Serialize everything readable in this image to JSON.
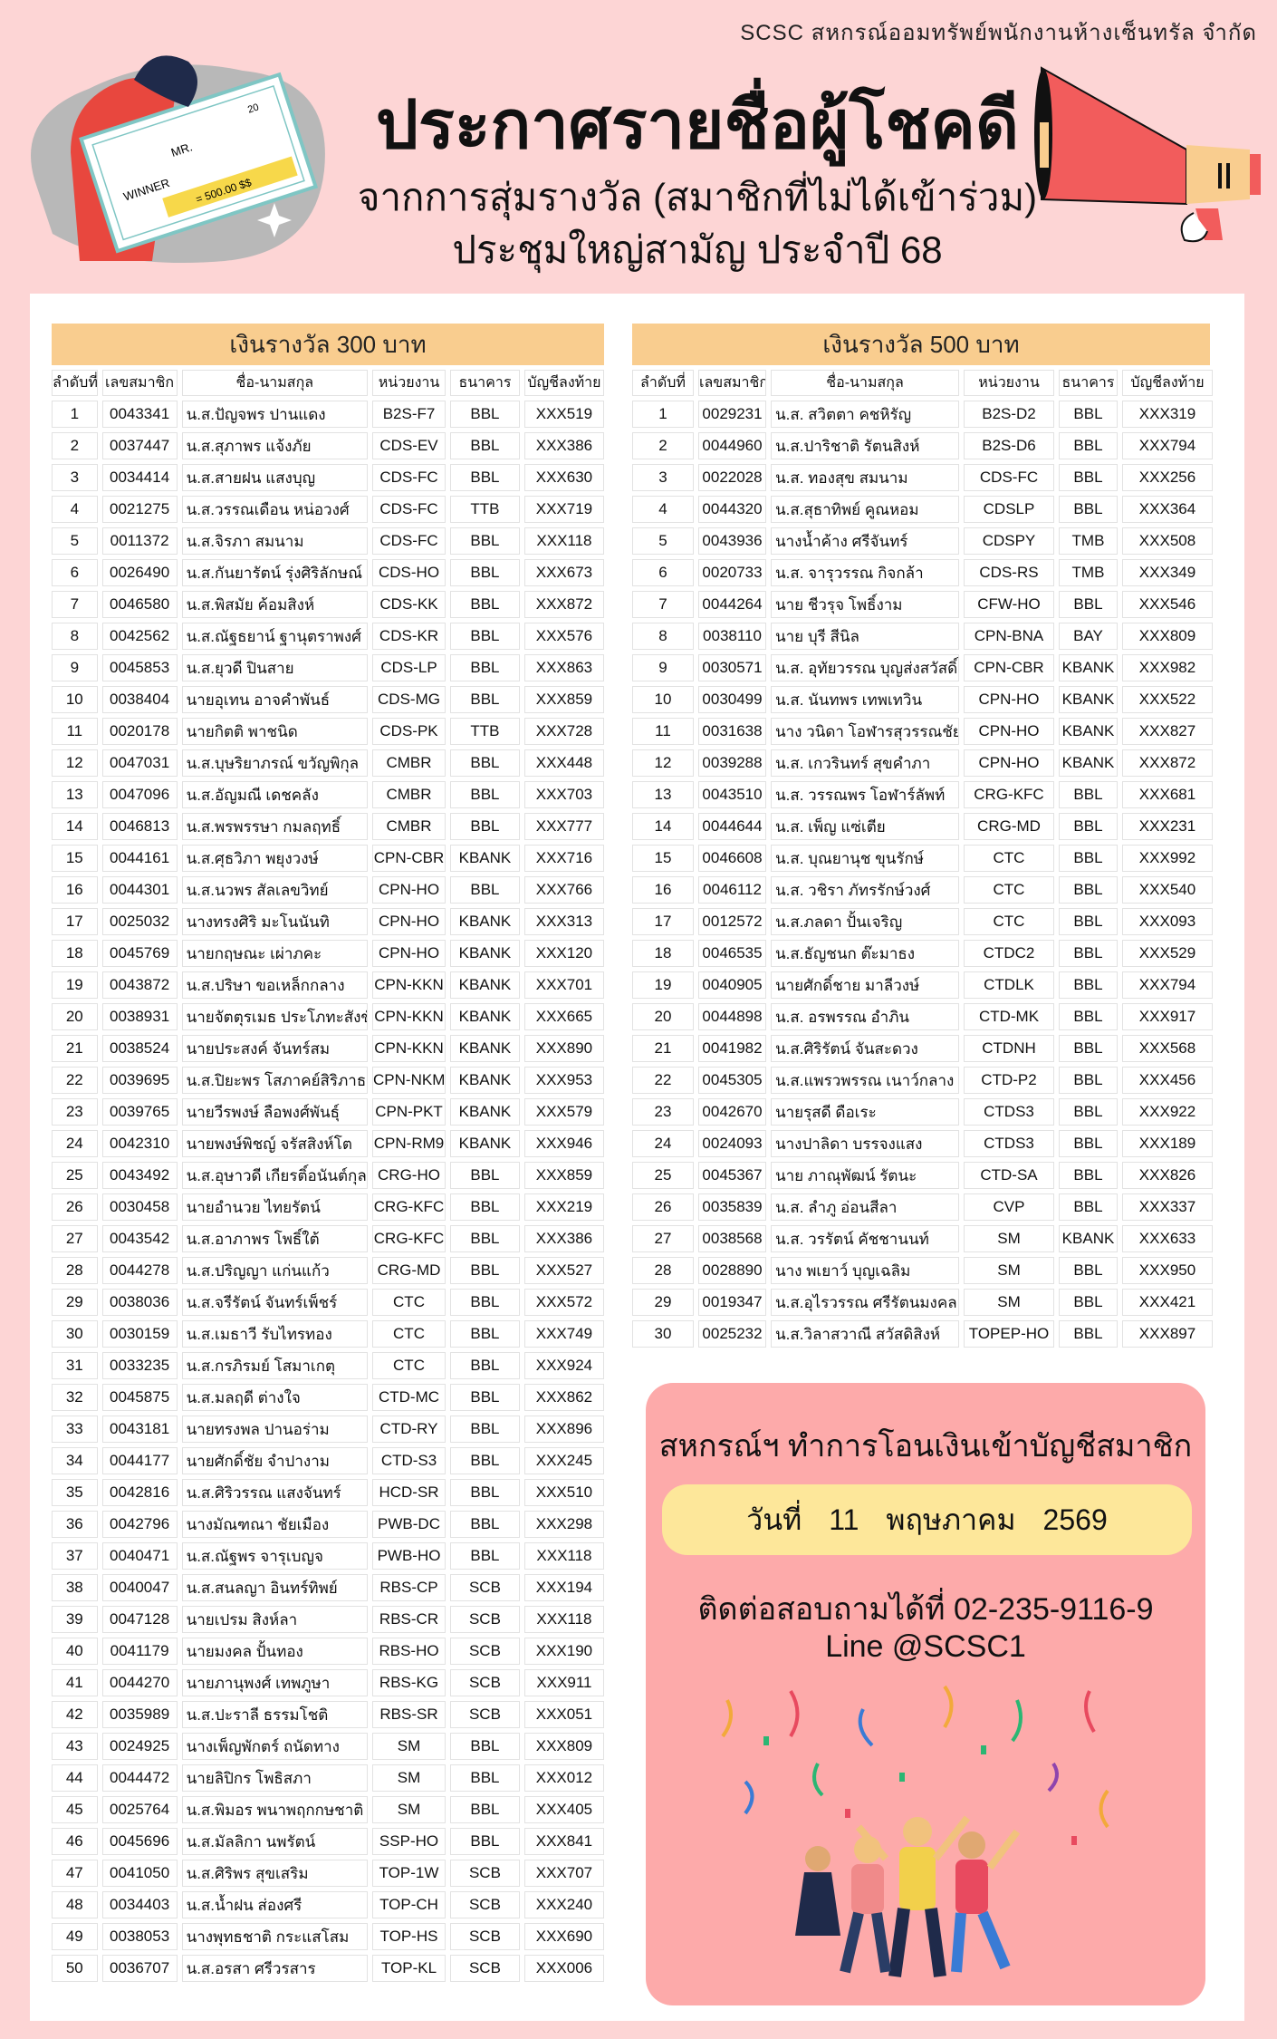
{
  "header": {
    "org": "SCSC สหกรณ์ออมทรัพย์พนักงานห้างเซ็นทรัล จำกัด",
    "title": "ประกาศรายชื่อผู้โชคดี",
    "subtitle1": "จากการสุ่มรางวัล (สมาชิกที่ไม่ได้เข้าร่วม)",
    "subtitle2": "ประชุมใหญ่สามัญ ประจำปี 68",
    "check_text": {
      "winner": "WINNER",
      "mr": "MR.",
      "amount": "= 500.00 $$",
      "num": "20"
    }
  },
  "columns": [
    "ลำดับที่",
    "เลขสมาชิก",
    "ชื่อ-นามสกุล",
    "หน่วยงาน",
    "ธนาคาร",
    "บัญชีลงท้าย"
  ],
  "colors": {
    "background": "#fdd5d5",
    "table_header": "#f9cd8f",
    "info_box": "#fdaaaa",
    "date_pill": "#fde79a"
  },
  "prize300": {
    "title": "เงินรางวัล 300 บาท",
    "rows": [
      [
        "1",
        "0043341",
        "น.ส.ปัญจพร ปานแดง",
        "B2S-F7",
        "BBL",
        "XXX519"
      ],
      [
        "2",
        "0037447",
        "น.ส.สุภาพร แจ้งภัย",
        "CDS-EV",
        "BBL",
        "XXX386"
      ],
      [
        "3",
        "0034414",
        "น.ส.สายฝน แสงบุญ",
        "CDS-FC",
        "BBL",
        "XXX630"
      ],
      [
        "4",
        "0021275",
        "น.ส.วรรณเดือน หน่อวงศ์",
        "CDS-FC",
        "TTB",
        "XXX719"
      ],
      [
        "5",
        "0011372",
        "น.ส.จิรภา สมนาม",
        "CDS-FC",
        "BBL",
        "XXX118"
      ],
      [
        "6",
        "0026490",
        "น.ส.กันยารัตน์ รุ่งศิริลักษณ์",
        "CDS-HO",
        "BBL",
        "XXX673"
      ],
      [
        "7",
        "0046580",
        "น.ส.พิสมัย  ค้อมสิงห์",
        "CDS-KK",
        "BBL",
        "XXX872"
      ],
      [
        "8",
        "0042562",
        "น.ส.ณัฐธยาน์ ฐานุตราพงศ์",
        "CDS-KR",
        "BBL",
        "XXX576"
      ],
      [
        "9",
        "0045853",
        "น.ส.ยุวดี ปินสาย",
        "CDS-LP",
        "BBL",
        "XXX863"
      ],
      [
        "10",
        "0038404",
        "นายอุเทน อาจคำพันธ์",
        "CDS-MG",
        "BBL",
        "XXX859"
      ],
      [
        "11",
        "0020178",
        "นายกิตติ  พาชนิด",
        "CDS-PK",
        "TTB",
        "XXX728"
      ],
      [
        "12",
        "0047031",
        "น.ส.บุษริยาภรณ์  ขวัญพิกุล",
        "CMBR",
        "BBL",
        "XXX448"
      ],
      [
        "13",
        "0047096",
        "น.ส.อัญมณี  เดชคลัง",
        "CMBR",
        "BBL",
        "XXX703"
      ],
      [
        "14",
        "0046813",
        "น.ส.พรพรรษา  กมลฤทธิ์",
        "CMBR",
        "BBL",
        "XXX777"
      ],
      [
        "15",
        "0044161",
        "น.ส.ศุธวิภา  พยุงวงษ์",
        "CPN-CBR",
        "KBANK",
        "XXX716"
      ],
      [
        "16",
        "0044301",
        "น.ส.นวพร  สัลเลขวิทย์",
        "CPN-HO",
        "BBL",
        "XXX766"
      ],
      [
        "17",
        "0025032",
        "นางทรงศิริ  มะโนนันทิ",
        "CPN-HO",
        "KBANK",
        "XXX313"
      ],
      [
        "18",
        "0045769",
        "นายกฤษณะ  เผ่าภคะ",
        "CPN-HO",
        "KBANK",
        "XXX120"
      ],
      [
        "19",
        "0043872",
        "น.ส.ปริษา  ขอเหล็กกลาง",
        "CPN-KKN",
        "KBANK",
        "XXX701"
      ],
      [
        "20",
        "0038931",
        "นายจัตตุรเมธ  ประโภทะสังข์",
        "CPN-KKN",
        "KBANK",
        "XXX665"
      ],
      [
        "21",
        "0038524",
        "นายประสงค์  จันทร์สม",
        "CPN-KKN",
        "KBANK",
        "XXX890"
      ],
      [
        "22",
        "0039695",
        "น.ส.ปิยะพร  โสภาคย์สิริภาธร",
        "CPN-NKM",
        "KBANK",
        "XXX953"
      ],
      [
        "23",
        "0039765",
        "นายวีรพงษ์  ลือพงศ์พันธุ์",
        "CPN-PKT",
        "KBANK",
        "XXX579"
      ],
      [
        "24",
        "0042310",
        "นายพงษ์พิชญ์  จรัสสิงห์โต",
        "CPN-RM9",
        "KBANK",
        "XXX946"
      ],
      [
        "25",
        "0043492",
        "น.ส.อุษาวดี  เกียรติ์อนันต์กุล",
        "CRG-HO",
        "BBL",
        "XXX859"
      ],
      [
        "26",
        "0030458",
        "นายอำนวย  ไทยรัตน์",
        "CRG-KFC",
        "BBL",
        "XXX219"
      ],
      [
        "27",
        "0043542",
        "น.ส.อาภาพร  โพธิ์ใต้",
        "CRG-KFC",
        "BBL",
        "XXX386"
      ],
      [
        "28",
        "0044278",
        "น.ส.ปริญญา  แก่นแก้ว",
        "CRG-MD",
        "BBL",
        "XXX527"
      ],
      [
        "29",
        "0038036",
        "น.ส.จรีรัตน์  จันทร์เพ็ชร์",
        "CTC",
        "BBL",
        "XXX572"
      ],
      [
        "30",
        "0030159",
        "น.ส.เมธาวี  รับไทรทอง",
        "CTC",
        "BBL",
        "XXX749"
      ],
      [
        "31",
        "0033235",
        "น.ส.กรภิรมย์  โสมาเกตุ",
        "CTC",
        "BBL",
        "XXX924"
      ],
      [
        "32",
        "0045875",
        "น.ส.มลฤดี  ต่างใจ",
        "CTD-MC",
        "BBL",
        "XXX862"
      ],
      [
        "33",
        "0043181",
        "นายทรงพล  ปานอร่าม",
        "CTD-RY",
        "BBL",
        "XXX896"
      ],
      [
        "34",
        "0044177",
        "นายศักดิ์ชัย  จำปางาม",
        "CTD-S3",
        "BBL",
        "XXX245"
      ],
      [
        "35",
        "0042816",
        "น.ส.ศิริวรรณ  แสงจันทร์",
        "HCD-SR",
        "BBL",
        "XXX510"
      ],
      [
        "36",
        "0042796",
        "นางมัณฑณา  ชัยเมือง",
        "PWB-DC",
        "BBL",
        "XXX298"
      ],
      [
        "37",
        "0040471",
        "น.ส.ณัฐพร  จารุเบญจ",
        "PWB-HO",
        "BBL",
        "XXX118"
      ],
      [
        "38",
        "0040047",
        "น.ส.สนลญา  อินทร์ทิพย์",
        "RBS-CP",
        "SCB",
        "XXX194"
      ],
      [
        "39",
        "0047128",
        "นายเปรม  สิงห์ลา",
        "RBS-CR",
        "SCB",
        "XXX118"
      ],
      [
        "40",
        "0041179",
        "นายมงคล  ปั้นทอง",
        "RBS-HO",
        "SCB",
        "XXX190"
      ],
      [
        "41",
        "0044270",
        "นายภานุพงศ์   เทพภูษา",
        "RBS-KG",
        "SCB",
        "XXX911"
      ],
      [
        "42",
        "0035989",
        "น.ส.ปะราลี  ธรรมโชติ",
        "RBS-SR",
        "SCB",
        "XXX051"
      ],
      [
        "43",
        "0024925",
        "นางเพ็ญพักตร์  ถนัดทาง",
        "SM",
        "BBL",
        "XXX809"
      ],
      [
        "44",
        "0044472",
        "นายลิปิกร  โพธิสภา",
        "SM",
        "BBL",
        "XXX012"
      ],
      [
        "45",
        "0025764",
        "น.ส.พิมอร พนาพฤกกษชาติ",
        "SM",
        "BBL",
        "XXX405"
      ],
      [
        "46",
        "0045696",
        "น.ส.มัลลิกา  นพรัตน์",
        "SSP-HO",
        "BBL",
        "XXX841"
      ],
      [
        "47",
        "0041050",
        "น.ส.ศิริพร  สุขเสริม",
        "TOP-1W",
        "SCB",
        "XXX707"
      ],
      [
        "48",
        "0034403",
        "น.ส.น้ำฝน ส่องศรี",
        "TOP-CH",
        "SCB",
        "XXX240"
      ],
      [
        "49",
        "0038053",
        "นางพุทธชาติ  กระแสโสม",
        "TOP-HS",
        "SCB",
        "XXX690"
      ],
      [
        "50",
        "0036707",
        "น.ส.อรสา ศรีวรสาร",
        "TOP-KL",
        "SCB",
        "XXX006"
      ]
    ]
  },
  "prize500": {
    "title": "เงินรางวัล 500 บาท",
    "rows": [
      [
        "1",
        "0029231",
        "น.ส. สวิตตา  คชหิรัญ",
        "B2S-D2",
        "BBL",
        "XXX319"
      ],
      [
        "2",
        "0044960",
        "น.ส.ปาริชาติ รัตนสิงห์",
        "B2S-D6",
        "BBL",
        "XXX794"
      ],
      [
        "3",
        "0022028",
        "น.ส. ทองสุข  สมนาม",
        "CDS-FC",
        "BBL",
        "XXX256"
      ],
      [
        "4",
        "0044320",
        "น.ส.สุธาทิพย์  คูณหอม",
        "CDSLP",
        "BBL",
        "XXX364"
      ],
      [
        "5",
        "0043936",
        "นางน้ำค้าง  ศรีจันทร์",
        "CDSPY",
        "TMB",
        "XXX508"
      ],
      [
        "6",
        "0020733",
        "น.ส. จารุวรรณ  กิจกล้า",
        "CDS-RS",
        "TMB",
        "XXX349"
      ],
      [
        "7",
        "0044264",
        "นาย ชีวรุจ  โพธิ์งาม",
        "CFW-HO",
        "BBL",
        "XXX546"
      ],
      [
        "8",
        "0038110",
        "นาย บุรี  สีนิล",
        "CPN-BNA",
        "BAY",
        "XXX809"
      ],
      [
        "9",
        "0030571",
        "น.ส. อุทัยวรรณ  บุญส่งสวัสดิ์",
        "CPN-CBR",
        "KBANK",
        "XXX982"
      ],
      [
        "10",
        "0030499",
        "น.ส. นันทพร  เทพเทวิน",
        "CPN-HO",
        "KBANK",
        "XXX522"
      ],
      [
        "11",
        "0031638",
        "นาง วนิดา  โอฬารสุวรรณชัย",
        "CPN-HO",
        "KBANK",
        "XXX827"
      ],
      [
        "12",
        "0039288",
        "น.ส. เกวรินทร์  สุขคำภา",
        "CPN-HO",
        "KBANK",
        "XXX872"
      ],
      [
        "13",
        "0043510",
        "น.ส. วรรณพร  โอฬาร์ลัพท์",
        "CRG-KFC",
        "BBL",
        "XXX681"
      ],
      [
        "14",
        "0044644",
        "น.ส. เพ็ญ  แซ่เตีย",
        "CRG-MD",
        "BBL",
        "XXX231"
      ],
      [
        "15",
        "0046608",
        "น.ส. บุณยานุช  ขุนรักษ์",
        "CTC",
        "BBL",
        "XXX992"
      ],
      [
        "16",
        "0046112",
        "น.ส. วชิรา ภัทรรักษ์วงศ์",
        "CTC",
        "BBL",
        "XXX540"
      ],
      [
        "17",
        "0012572",
        "น.ส.ภลดา  ปั้นเจริญ",
        "CTC",
        "BBL",
        "XXX093"
      ],
      [
        "18",
        "0046535",
        "น.ส.ธัญชนก  ต๊ะมาธง",
        "CTDC2",
        "BBL",
        "XXX529"
      ],
      [
        "19",
        "0040905",
        "นายศักดิ์ชาย  มาลีวงษ์",
        "CTDLK",
        "BBL",
        "XXX794"
      ],
      [
        "20",
        "0044898",
        "น.ส. อรพรรณ  อำภิน",
        "CTD-MK",
        "BBL",
        "XXX917"
      ],
      [
        "21",
        "0041982",
        "น.ส.ศิริรัตน์  จันสะดวง",
        "CTDNH",
        "BBL",
        "XXX568"
      ],
      [
        "22",
        "0045305",
        "น.ส.แพรวพรรณ เนาว์กลาง",
        "CTD-P2",
        "BBL",
        "XXX456"
      ],
      [
        "23",
        "0042670",
        "นายรุสดี  ดือเระ",
        "CTDS3",
        "BBL",
        "XXX922"
      ],
      [
        "24",
        "0024093",
        "นางปาลิดา บรรจงแสง",
        "CTDS3",
        "BBL",
        "XXX189"
      ],
      [
        "25",
        "0045367",
        "นาย ภาณุพัฒน์  รัตนะ",
        "CTD-SA",
        "BBL",
        "XXX826"
      ],
      [
        "26",
        "0035839",
        "น.ส. ลำภู  อ่อนสีลา",
        "CVP",
        "BBL",
        "XXX337"
      ],
      [
        "27",
        "0038568",
        "น.ส. วรรัตน์  คัชชานนท์",
        "SM",
        "KBANK",
        "XXX633"
      ],
      [
        "28",
        "0028890",
        "นาง พเยาว์  บุญเฉลิม",
        "SM",
        "BBL",
        "XXX950"
      ],
      [
        "29",
        "0019347",
        "น.ส.อุไรวรรณ ศรีรัตนมงคล",
        "SM",
        "BBL",
        "XXX421"
      ],
      [
        "30",
        "0025232",
        "น.ส.วิลาสวาณี สวัสดิสิงห์",
        "TOPEP-HO",
        "BBL",
        "XXX897"
      ]
    ]
  },
  "info": {
    "transfer": "สหกรณ์ฯ ทำการโอนเงินเข้าบัญชีสมาชิก",
    "date": {
      "label": "วันที่",
      "day": "11",
      "month": "พฤษภาคม",
      "year": "2569"
    },
    "contact": "ติดต่อสอบถามได้ที่ 02-235-9116-9",
    "line": "Line @SCSC1"
  }
}
